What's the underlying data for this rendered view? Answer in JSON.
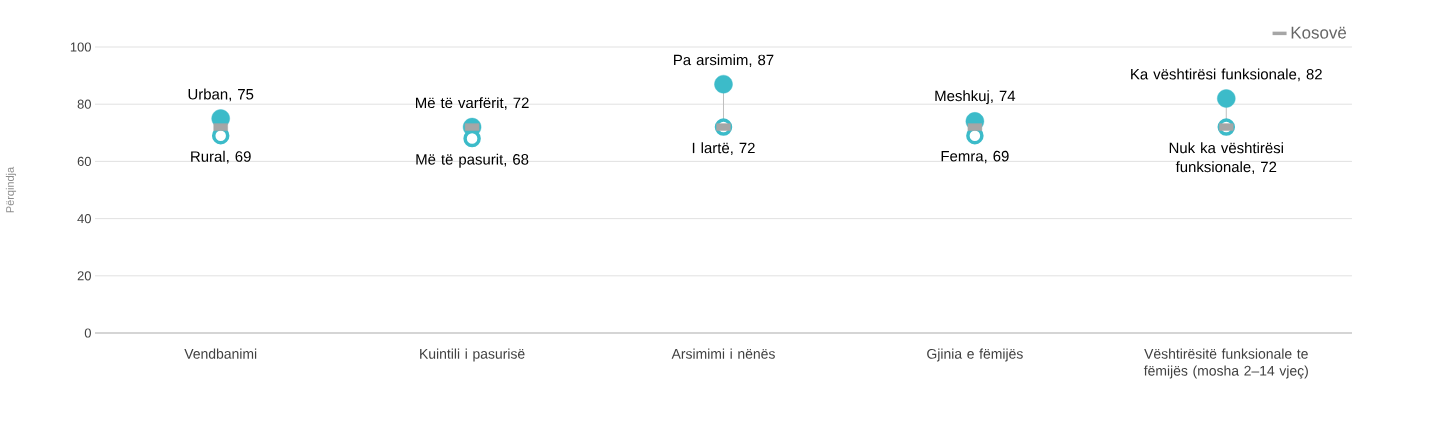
{
  "chart_data": {
    "type": "scatter",
    "ylabel": "Përqindja",
    "categories": [
      "Vendbanimi",
      "Kuintili i pasurisë",
      "Arsimimi i nënës",
      "Gjinia e fëmijës",
      "Vështirësitë funksionale te fëmijës (mosha 2–14 vjeç)"
    ],
    "ylim": [
      0,
      100
    ],
    "yticks": [
      0,
      20,
      40,
      60,
      80,
      100
    ],
    "grid": "y",
    "legend": "top right",
    "series": [
      {
        "color": "#3cbbc9",
        "marker": "circle",
        "values": [
          75,
          72,
          87,
          74,
          82
        ],
        "value_labels": [
          "Urban, 75",
          "Më të varfërit, 72",
          "Pa arsimim, 87",
          "Meshkuj, 74",
          "Ka vështirësi funksionale, 82"
        ]
      },
      {
        "color": "#3cbbc9",
        "marker": "circle",
        "values": [
          69,
          68,
          72,
          69,
          72
        ],
        "value_labels": [
          "Rural, 69",
          "Më të pasurit, 68",
          "I lartë, 72",
          "Femra, 69",
          "Nuk ka vështirësi funksionale, 72"
        ]
      },
      {
        "name": "Kosovë",
        "color": "#a6a6a6",
        "marker": "square",
        "values": [
          72,
          72,
          72,
          72,
          72
        ]
      }
    ]
  }
}
